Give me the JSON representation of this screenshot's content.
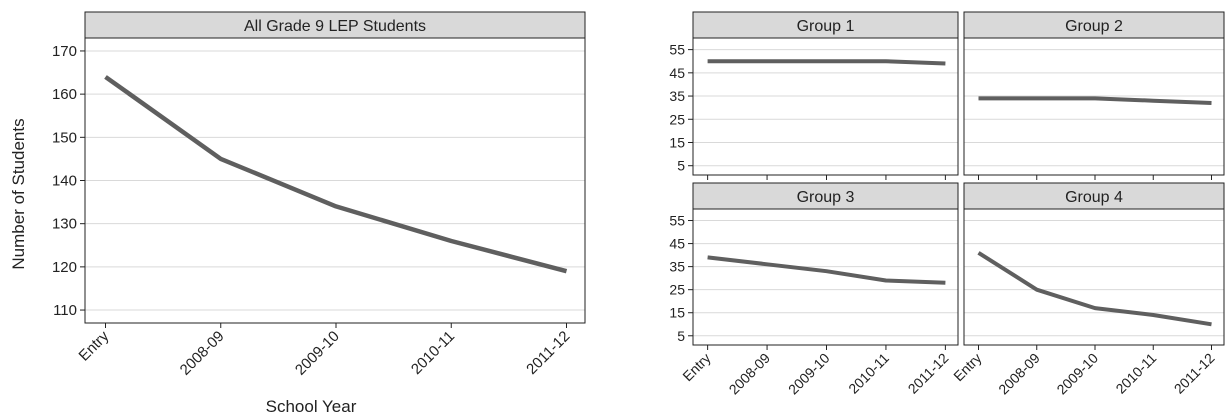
{
  "figure": {
    "ylabel": "Number of Students",
    "xlabel": "School Year"
  },
  "chart_data": [
    {
      "type": "line",
      "title": "All Grade 9 LEP Students",
      "categories": [
        "Entry",
        "2008-09",
        "2009-10",
        "2010-11",
        "2011-12"
      ],
      "values": [
        164,
        145,
        134,
        126,
        119
      ],
      "ylim": [
        107,
        173
      ],
      "yticks": [
        110,
        120,
        130,
        140,
        150,
        160,
        170
      ],
      "grid": true,
      "color": "#5f5f5f"
    },
    {
      "type": "line",
      "title": "Group 1",
      "categories": [
        "Entry",
        "2008-09",
        "2009-10",
        "2010-11",
        "2011-12"
      ],
      "values": [
        50,
        50,
        50,
        50,
        49
      ],
      "ylim": [
        1,
        60
      ],
      "yticks": [
        5,
        15,
        25,
        35,
        45,
        55
      ],
      "grid": true,
      "color": "#5f5f5f"
    },
    {
      "type": "line",
      "title": "Group 2",
      "categories": [
        "Entry",
        "2008-09",
        "2009-10",
        "2010-11",
        "2011-12"
      ],
      "values": [
        34,
        34,
        34,
        33,
        32
      ],
      "ylim": [
        1,
        60
      ],
      "yticks": [
        5,
        15,
        25,
        35,
        45,
        55
      ],
      "grid": true,
      "color": "#5f5f5f"
    },
    {
      "type": "line",
      "title": "Group 3",
      "categories": [
        "Entry",
        "2008-09",
        "2009-10",
        "2010-11",
        "2011-12"
      ],
      "values": [
        39,
        36,
        33,
        29,
        28
      ],
      "ylim": [
        1,
        60
      ],
      "yticks": [
        5,
        15,
        25,
        35,
        45,
        55
      ],
      "grid": true,
      "color": "#5f5f5f"
    },
    {
      "type": "line",
      "title": "Group 4",
      "categories": [
        "Entry",
        "2008-09",
        "2009-10",
        "2010-11",
        "2011-12"
      ],
      "values": [
        41,
        25,
        17,
        14,
        10
      ],
      "ylim": [
        1,
        60
      ],
      "yticks": [
        5,
        15,
        25,
        35,
        45,
        55
      ],
      "grid": true,
      "color": "#5f5f5f"
    }
  ]
}
